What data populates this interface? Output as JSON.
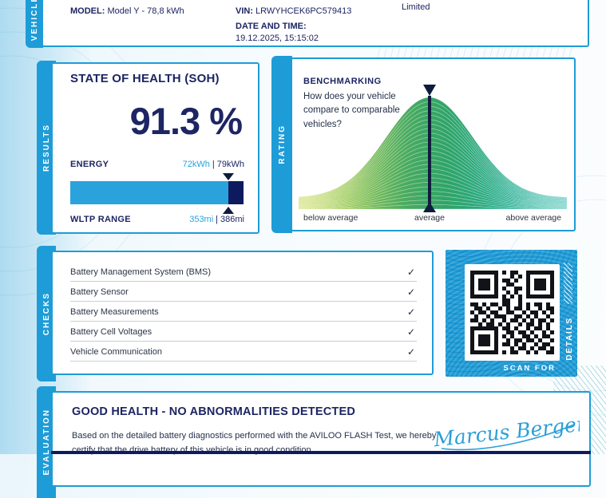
{
  "vehicle": {
    "tab_label": "VEHICLE",
    "model_label": "MODEL:",
    "model_value": "Model Y - 78,8 kWh",
    "vin_label": "VIN:",
    "vin_value": "LRWYHCEK6PC579413",
    "limited_text": "Limited",
    "datetime_label": "DATE AND TIME:",
    "datetime_value": "19.12.2025, 15:15:02"
  },
  "results": {
    "tab_label": "RESULTS",
    "soh_title": "STATE OF HEALTH (SOH)",
    "soh_value": "91.3 %",
    "energy_label": "ENERGY",
    "energy_current": "72kWh",
    "value_separator": "|",
    "energy_original": "79kWh",
    "wltp_label": "WLTP RANGE",
    "wltp_current": "353mi",
    "wltp_original": "386mi",
    "bar_percent": 91.3
  },
  "rating": {
    "tab_label": "RATING",
    "title": "BENCHMARKING",
    "subtitle": "How does your vehicle compare to comparable vehicles?",
    "axis_labels": [
      "below average",
      "average",
      "above average"
    ]
  },
  "chart_data": {
    "type": "area",
    "title": "BENCHMARKING",
    "distribution": "normal bell curve of comparable vehicles",
    "x_categories": [
      "below average",
      "average",
      "above average"
    ],
    "marker_position": "average",
    "marker_color": "#101c3d",
    "sigma": 54,
    "line_count": 26,
    "gradient_stops": [
      {
        "o": 0,
        "c": "#c8d84b"
      },
      {
        "o": 0.2,
        "c": "#93c654"
      },
      {
        "o": 0.4,
        "c": "#4aab60"
      },
      {
        "o": 0.55,
        "c": "#2fa468"
      },
      {
        "o": 0.78,
        "c": "#27ae90"
      },
      {
        "o": 1,
        "c": "#23b5a6"
      }
    ]
  },
  "checks": {
    "tab_label": "CHECKS",
    "items": [
      {
        "label": "Battery Management System (BMS)",
        "status": "✓"
      },
      {
        "label": "Battery Sensor",
        "status": "✓"
      },
      {
        "label": "Battery Measurements",
        "status": "✓"
      },
      {
        "label": "Battery Cell Voltages",
        "status": "✓"
      },
      {
        "label": "Vehicle Communication",
        "status": "✓"
      }
    ]
  },
  "details": {
    "scan_for": "SCAN FOR",
    "details_label": "DETAILS",
    "qr_matrix": [
      "111111101011001111111",
      "100000100010101000001",
      "101110101101001011101",
      "101110100110001011101",
      "101110101001101011101",
      "100000100101001000001",
      "111111101010101111111",
      "000000001100100000000",
      "110101101100101011010",
      "011010010101101001011",
      "101101100110010110101",
      "010010111001101010010",
      "110101001011010101101",
      "001011010100101101010",
      "111111101101001011010",
      "100000100110110100101",
      "101110101010011010110",
      "101110100101101101001",
      "101110101101010010110",
      "100000100010110101101",
      "111111101011001010011"
    ]
  },
  "evaluation": {
    "tab_label": "EVALUATION",
    "title": "GOOD HEALTH - NO ABNORMALITIES DETECTED",
    "body": "Based on the detailed battery diagnostics performed with the AVILOO FLASH Test, we hereby certify that the drive battery of this vehicle is in good condition.",
    "signature_name": "Marcus Berger"
  },
  "colors": {
    "accent_blue": "#1e9cd7",
    "navy": "#1d2563",
    "bar_light": "#2aa3dc",
    "bar_dark": "#0d1b5e",
    "signature_blue": "#2a9fd8"
  }
}
